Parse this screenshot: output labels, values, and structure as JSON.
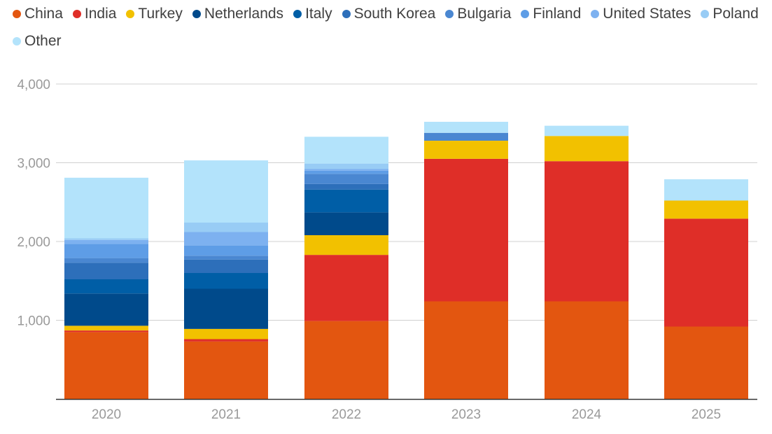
{
  "chart_data": {
    "type": "bar",
    "stacked": true,
    "categories": [
      "2020",
      "2021",
      "2022",
      "2023",
      "2024",
      "2025"
    ],
    "ylim": [
      0,
      4000
    ],
    "yticks": [
      1000,
      2000,
      3000,
      4000
    ],
    "ytick_labels": [
      "1,000",
      "2,000",
      "3,000",
      "4,000"
    ],
    "grid": true,
    "legend_position": "top",
    "series": [
      {
        "name": "China",
        "color": "#e35610",
        "values": [
          850,
          730,
          990,
          1240,
          1240,
          920
        ]
      },
      {
        "name": "India",
        "color": "#df2e28",
        "values": [
          20,
          30,
          840,
          1810,
          1780,
          1370
        ]
      },
      {
        "name": "Turkey",
        "color": "#f2c100",
        "values": [
          60,
          130,
          250,
          230,
          320,
          230
        ]
      },
      {
        "name": "Netherlands",
        "color": "#004a8b",
        "values": [
          410,
          510,
          290,
          0,
          0,
          0
        ]
      },
      {
        "name": "Italy",
        "color": "#005ea6",
        "values": [
          180,
          200,
          290,
          0,
          0,
          0
        ]
      },
      {
        "name": "South Korea",
        "color": "#2d6fba",
        "values": [
          210,
          170,
          70,
          0,
          0,
          0
        ]
      },
      {
        "name": "Bulgaria",
        "color": "#4a87d1",
        "values": [
          60,
          50,
          130,
          100,
          0,
          0
        ]
      },
      {
        "name": "Finland",
        "color": "#5e9de6",
        "values": [
          180,
          130,
          40,
          0,
          0,
          0
        ]
      },
      {
        "name": "United States",
        "color": "#7db1f0",
        "values": [
          50,
          170,
          20,
          0,
          0,
          0
        ]
      },
      {
        "name": "Poland",
        "color": "#98ccf5",
        "values": [
          20,
          120,
          70,
          0,
          0,
          0
        ]
      },
      {
        "name": "Other",
        "color": "#b3e3fb",
        "values": [
          770,
          790,
          340,
          140,
          130,
          270
        ]
      }
    ]
  }
}
